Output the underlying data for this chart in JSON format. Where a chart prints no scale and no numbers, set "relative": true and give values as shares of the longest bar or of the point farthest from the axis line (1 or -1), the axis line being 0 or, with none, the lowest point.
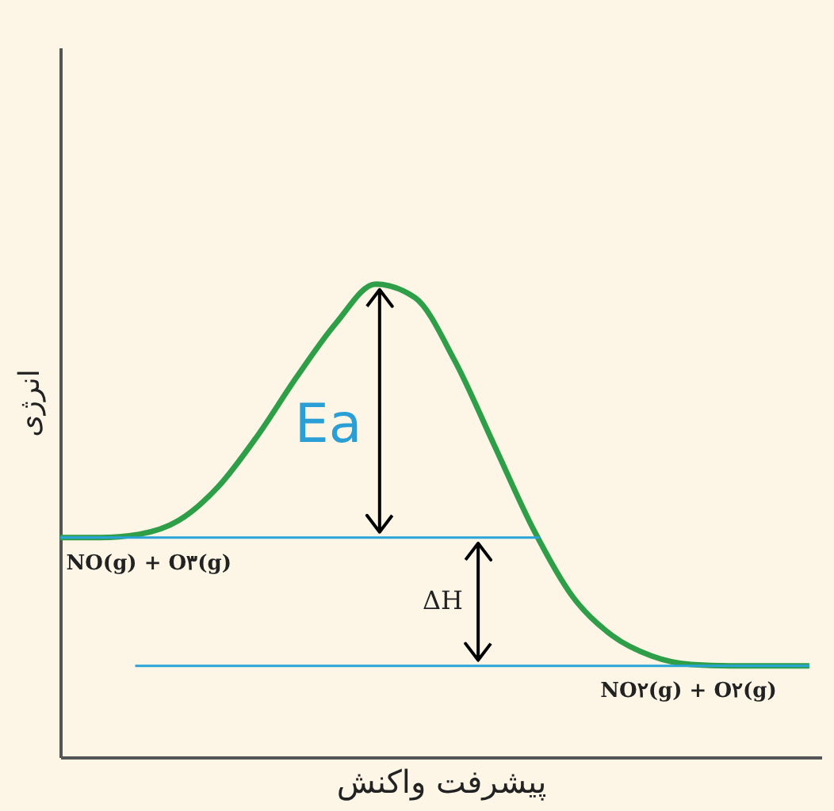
{
  "chart_data": {
    "type": "line",
    "relative": true,
    "xlabel": "پیشرفت واکنش",
    "ylabel": "انرژی",
    "categories": [
      null,
      null,
      null,
      null,
      null,
      null,
      null,
      null,
      null,
      null,
      null,
      null,
      null,
      null,
      null,
      null,
      null,
      null,
      null,
      null
    ],
    "series": [
      {
        "color": "#2e9e48",
        "values": [
          0.464,
          0.464,
          0.471,
          0.5,
          0.571,
          0.679,
          0.804,
          0.918,
          1,
          0.971,
          0.839,
          0.661,
          0.482,
          0.339,
          0.257,
          0.214,
          0.196,
          0.193,
          0.193,
          0.193
        ]
      }
    ],
    "ref_lines": [
      {
        "axis": "y",
        "value": 0.464,
        "color": "#29a3d8"
      },
      {
        "axis": "y",
        "value": 0.193,
        "color": "#29a3d8"
      }
    ],
    "annotations": [
      "Ea",
      "ΔH",
      "NO(g) + O۳(g)",
      "NO۲(g) + O۲(g)"
    ],
    "grid": false,
    "marker": "none",
    "line_style": "solid"
  }
}
